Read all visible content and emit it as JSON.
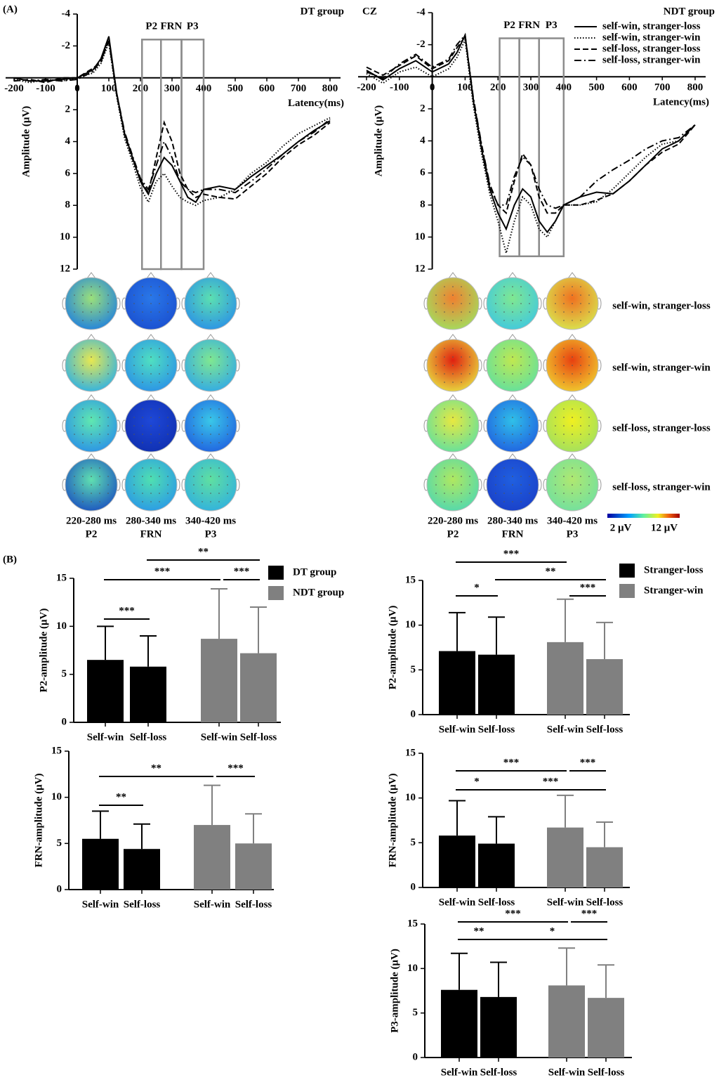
{
  "panel_labels": [
    "(A)",
    "(B)"
  ],
  "topomaps": {
    "time_labels": [
      "220-280 ms",
      "280-340 ms",
      "340-420 ms"
    ],
    "colorbar": {
      "min_label": "2 μV",
      "max_label": "12 μV"
    }
  },
  "chart_data": [
    {
      "type": "line",
      "title": "DT group",
      "xlabel": "Latency(ms)",
      "ylabel": "Amplitude (μV)",
      "xlim": [
        -200,
        800
      ],
      "xticks": [
        -200,
        -100,
        0,
        100,
        200,
        300,
        400,
        500,
        600,
        700,
        800
      ],
      "ylim": [
        -4,
        12
      ],
      "yticks": [
        -4,
        -2,
        2,
        4,
        6,
        8,
        10,
        12
      ],
      "y_reversed": true,
      "windows": [
        {
          "label": "P2",
          "from": 205,
          "to": 265
        },
        {
          "label": "FRN",
          "from": 265,
          "to": 330
        },
        {
          "label": "P3",
          "from": 330,
          "to": 400
        }
      ],
      "window_ylim": [
        -2.4,
        12
      ],
      "x": [
        -200,
        -150,
        -100,
        -50,
        0,
        50,
        75,
        100,
        125,
        150,
        175,
        200,
        225,
        250,
        275,
        300,
        325,
        350,
        375,
        400,
        450,
        500,
        550,
        600,
        650,
        700,
        750,
        800
      ],
      "series": [
        {
          "style": "solid",
          "color": "#000000",
          "values": [
            0,
            0.2,
            0.2,
            0.1,
            0,
            -0.5,
            -1.2,
            -2.6,
            1,
            3.5,
            5,
            6.5,
            7.3,
            6,
            5,
            5.5,
            6.5,
            7.5,
            7.8,
            7,
            6.8,
            7,
            6.2,
            5.5,
            4.8,
            4,
            3.3,
            2.7
          ]
        },
        {
          "style": "dotted",
          "color": "#000000",
          "values": [
            0.1,
            0.3,
            0.1,
            0.2,
            0,
            -0.3,
            -0.9,
            -2.2,
            1.2,
            3.8,
            5.3,
            6.9,
            7.8,
            6.5,
            6,
            6.8,
            7.5,
            7.8,
            8,
            7.7,
            7.5,
            7,
            6,
            5.3,
            4.3,
            3.5,
            3,
            2.5
          ]
        },
        {
          "style": "dashed",
          "color": "#000000",
          "values": [
            0.2,
            0.1,
            0.3,
            0,
            0,
            -0.6,
            -1,
            -2.4,
            1.1,
            3.6,
            5.1,
            6.4,
            7.2,
            5,
            2.8,
            4,
            6,
            7,
            7.5,
            7.3,
            7.5,
            7.6,
            6.8,
            6,
            5,
            4.2,
            3.6,
            2.8
          ]
        },
        {
          "style": "dashdot",
          "color": "#000000",
          "values": [
            0,
            0.2,
            0.1,
            0.2,
            0.1,
            -0.4,
            -1.1,
            -2.3,
            1,
            3.4,
            4.9,
            6.3,
            7,
            5.5,
            4,
            5,
            6.5,
            7,
            7.2,
            7,
            7,
            7.2,
            6.5,
            5.7,
            4.8,
            4,
            3.4,
            2.6
          ]
        }
      ]
    },
    {
      "type": "line",
      "title": "NDT group",
      "annotation": "CZ",
      "xlabel": "Latency(ms)",
      "ylabel": "Amplitude (μV)",
      "xlim": [
        -200,
        800
      ],
      "xticks": [
        -200,
        -100,
        0,
        100,
        200,
        300,
        400,
        500,
        600,
        700,
        800
      ],
      "ylim": [
        -4,
        12
      ],
      "yticks": [
        -4,
        -2,
        2,
        4,
        6,
        8,
        10,
        12
      ],
      "y_reversed": true,
      "windows": [
        {
          "label": "P2",
          "from": 205,
          "to": 265
        },
        {
          "label": "FRN",
          "from": 265,
          "to": 325
        },
        {
          "label": "P3",
          "from": 325,
          "to": 400
        }
      ],
      "window_ylim": [
        -2.4,
        11.2
      ],
      "x": [
        -200,
        -150,
        -100,
        -50,
        0,
        50,
        75,
        100,
        125,
        150,
        175,
        200,
        225,
        250,
        275,
        300,
        325,
        350,
        375,
        400,
        450,
        500,
        550,
        600,
        650,
        700,
        750,
        800
      ],
      "series": [
        {
          "name": "self-win, stranger-loss",
          "style": "solid",
          "color": "#000000",
          "values": [
            -0.4,
            0.2,
            -0.5,
            -1,
            -0.3,
            -0.8,
            -1.5,
            -2.6,
            1.5,
            4.5,
            7,
            8.5,
            9.5,
            8,
            7,
            7.5,
            9,
            9.7,
            9,
            8,
            7.5,
            7.2,
            7.3,
            6.5,
            5.5,
            4.5,
            4,
            3
          ]
        },
        {
          "name": "self-win, stranger-win",
          "style": "dotted",
          "color": "#000000",
          "values": [
            -0.2,
            0.4,
            -0.3,
            -0.6,
            0,
            -0.5,
            -1.2,
            -2.3,
            1.8,
            4.8,
            7.3,
            9,
            11,
            9,
            7.5,
            8,
            9.5,
            10,
            9,
            8,
            8,
            7.8,
            7,
            6,
            5,
            4.2,
            4,
            3
          ]
        },
        {
          "name": "self-loss, stranger-loss",
          "style": "dashed",
          "color": "#000000",
          "values": [
            -0.6,
            -0.1,
            -0.7,
            -1.3,
            -0.5,
            -1,
            -1.8,
            -2.5,
            1.4,
            4.3,
            6.8,
            8,
            8.5,
            6.5,
            4.8,
            5.5,
            7.5,
            8.5,
            8.5,
            8,
            8,
            7.7,
            7.3,
            6.5,
            5.5,
            4.7,
            4.2,
            3
          ]
        },
        {
          "name": "self-loss, stranger-win",
          "style": "dashdot",
          "color": "#000000",
          "values": [
            -0.3,
            0.1,
            -0.8,
            -1.4,
            -0.6,
            -1.1,
            -2,
            -2.6,
            1.3,
            4.2,
            6.7,
            8,
            8,
            6.2,
            5,
            5.5,
            7,
            8,
            8.2,
            8,
            7.5,
            6.5,
            5.8,
            5.2,
            4.5,
            4,
            3.8,
            3
          ]
        }
      ]
    },
    {
      "type": "bar",
      "ylabel": "P2-amplitude (μV)",
      "ylim": [
        0,
        15
      ],
      "yticks": [
        0,
        5,
        10,
        15
      ],
      "series": [
        {
          "name": "DT group",
          "color": "#000000",
          "categories": [
            "Self-win",
            "Self-loss"
          ],
          "values": [
            6.5,
            5.8
          ],
          "errors": [
            3.5,
            3.2
          ]
        },
        {
          "name": "NDT group",
          "color": "#808080",
          "categories": [
            "Self-win",
            "Self-loss"
          ],
          "values": [
            8.7,
            7.2
          ],
          "errors": [
            5.2,
            4.8
          ]
        }
      ],
      "brackets": [
        {
          "label": "***",
          "bars": [
            0,
            1
          ]
        },
        {
          "label": "***",
          "bars": [
            0,
            2
          ]
        },
        {
          "label": "***",
          "bars": [
            2,
            3
          ]
        },
        {
          "label": "**",
          "bars": [
            1,
            3
          ]
        }
      ]
    },
    {
      "type": "bar",
      "ylabel": "FRN-amplitude (μV)",
      "ylim": [
        0,
        15
      ],
      "yticks": [
        0,
        5,
        10,
        15
      ],
      "series": [
        {
          "color": "#000000",
          "categories": [
            "Self-win",
            "Self-loss"
          ],
          "values": [
            5.5,
            4.4
          ],
          "errors": [
            3,
            2.7
          ]
        },
        {
          "color": "#808080",
          "categories": [
            "Self-win",
            "Self-loss"
          ],
          "values": [
            7,
            5
          ],
          "errors": [
            4.3,
            3.2
          ]
        }
      ],
      "brackets": [
        {
          "label": "**",
          "bars": [
            0,
            1
          ]
        },
        {
          "label": "**",
          "bars": [
            0,
            2
          ]
        },
        {
          "label": "***",
          "bars": [
            2,
            3
          ]
        }
      ]
    },
    {
      "type": "bar",
      "ylabel": "P2-amplitude (μV)",
      "ylim": [
        0,
        15
      ],
      "yticks": [
        0,
        5,
        10,
        15
      ],
      "series": [
        {
          "name": "Stranger-loss",
          "color": "#000000",
          "categories": [
            "Self-win",
            "Self-loss"
          ],
          "values": [
            7.1,
            6.7
          ],
          "errors": [
            4.3,
            4.2
          ]
        },
        {
          "name": "Stranger-win",
          "color": "#808080",
          "categories": [
            "Self-win",
            "Self-loss"
          ],
          "values": [
            8.1,
            6.2
          ],
          "errors": [
            4.8,
            4.1
          ]
        }
      ],
      "brackets": [
        {
          "label": "*",
          "bars": [
            0,
            1
          ]
        },
        {
          "label": "***",
          "bars": [
            0,
            2
          ]
        },
        {
          "label": "**",
          "bars": [
            1,
            3
          ]
        },
        {
          "label": "***",
          "bars": [
            2,
            3
          ]
        }
      ]
    },
    {
      "type": "bar",
      "ylabel": "FRN-amplitude (μV)",
      "ylim": [
        0,
        15
      ],
      "yticks": [
        0,
        5,
        10,
        15
      ],
      "series": [
        {
          "color": "#000000",
          "categories": [
            "Self-win",
            "Self-loss"
          ],
          "values": [
            5.8,
            4.9
          ],
          "errors": [
            3.9,
            3
          ]
        },
        {
          "color": "#808080",
          "categories": [
            "Self-win",
            "Self-loss"
          ],
          "values": [
            6.7,
            4.5
          ],
          "errors": [
            3.6,
            2.8
          ]
        }
      ],
      "brackets": [
        {
          "label": "*",
          "bars": [
            0,
            1
          ]
        },
        {
          "label": "***",
          "bars": [
            0,
            2
          ]
        },
        {
          "label": "***",
          "bars": [
            2,
            3
          ]
        },
        {
          "label": "***",
          "bars": [
            1,
            3
          ]
        }
      ]
    },
    {
      "type": "bar",
      "ylabel": "P3-amplitude (μV)",
      "ylim": [
        0,
        15
      ],
      "yticks": [
        0,
        5,
        10,
        15
      ],
      "series": [
        {
          "color": "#000000",
          "categories": [
            "Self-win",
            "Self-loss"
          ],
          "values": [
            7.6,
            6.8
          ],
          "errors": [
            4.1,
            3.9
          ]
        },
        {
          "color": "#808080",
          "categories": [
            "Self-win",
            "Self-loss"
          ],
          "values": [
            8.1,
            6.7
          ],
          "errors": [
            4.2,
            3.7
          ]
        }
      ],
      "brackets": [
        {
          "label": "**",
          "bars": [
            0,
            1
          ]
        },
        {
          "label": "***",
          "bars": [
            0,
            2
          ]
        },
        {
          "label": "***",
          "bars": [
            2,
            3
          ]
        },
        {
          "label": "*",
          "bars": [
            1,
            3
          ]
        }
      ]
    }
  ]
}
